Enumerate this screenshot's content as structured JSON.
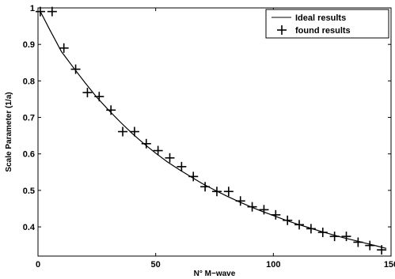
{
  "chart_data": {
    "type": "line",
    "title": "",
    "xlabel": "N° M−wave",
    "ylabel": "Scale Parameter (1/a)",
    "xlim": [
      0,
      150
    ],
    "ylim": [
      0.32,
      1.0
    ],
    "xticks": [
      "0",
      "50",
      "100",
      "150"
    ],
    "yticks": [
      "0.4",
      "0.5",
      "0.6",
      "0.7",
      "0.8",
      "0.9",
      "1"
    ],
    "xtick_values": [
      0,
      50,
      100,
      150
    ],
    "ytick_values": [
      0.4,
      0.5,
      0.6,
      0.7,
      0.8,
      0.9,
      1.0
    ],
    "grid": false,
    "legend_position": "top-right",
    "series": [
      {
        "name": "Ideal results",
        "style": "solid-line",
        "color": "#000000",
        "x": [
          1,
          5,
          10,
          15,
          20,
          25,
          30,
          35,
          40,
          45,
          50,
          55,
          60,
          65,
          70,
          75,
          80,
          85,
          90,
          95,
          100,
          105,
          110,
          115,
          120,
          125,
          130,
          135,
          140,
          145,
          148
        ],
        "y": [
          0.99,
          0.94,
          0.88,
          0.837,
          0.795,
          0.755,
          0.72,
          0.687,
          0.656,
          0.628,
          0.602,
          0.578,
          0.557,
          0.537,
          0.518,
          0.501,
          0.485,
          0.47,
          0.456,
          0.443,
          0.431,
          0.419,
          0.408,
          0.398,
          0.388,
          0.379,
          0.37,
          0.362,
          0.354,
          0.346,
          0.341
        ]
      },
      {
        "name": "found results",
        "style": "plus-marker",
        "color": "#000000",
        "x": [
          1,
          6,
          11,
          16,
          21,
          26,
          31,
          36,
          41,
          46,
          51,
          56,
          61,
          66,
          71,
          76,
          81,
          86,
          91,
          96,
          101,
          106,
          111,
          116,
          121,
          126,
          131,
          136,
          141,
          146
        ],
        "y": [
          0.99,
          0.99,
          0.89,
          0.832,
          0.768,
          0.757,
          0.72,
          0.661,
          0.661,
          0.628,
          0.609,
          0.589,
          0.565,
          0.538,
          0.51,
          0.497,
          0.497,
          0.471,
          0.455,
          0.447,
          0.433,
          0.418,
          0.406,
          0.395,
          0.385,
          0.374,
          0.374,
          0.358,
          0.349,
          0.337
        ]
      }
    ]
  }
}
